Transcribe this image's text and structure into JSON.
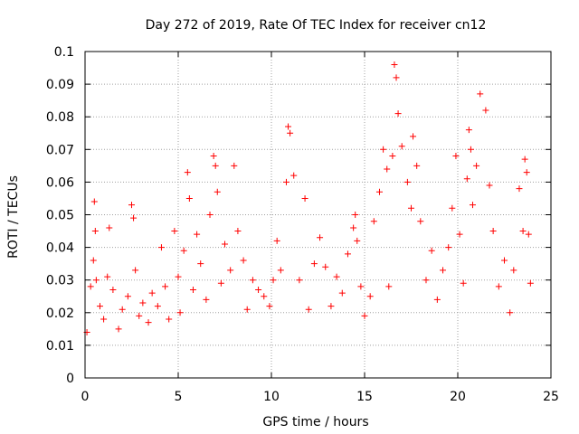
{
  "chart_data": {
    "type": "scatter",
    "title": "Day 272 of 2019, Rate Of TEC Index for receiver cn12",
    "xlabel": "GPS time / hours",
    "ylabel": "ROTI / TECUs",
    "xlim": [
      0,
      25
    ],
    "ylim": [
      0,
      0.1
    ],
    "xticks": [
      0,
      5,
      10,
      15,
      20,
      25
    ],
    "xtick_labels": [
      "0",
      "5",
      "10",
      "15",
      "20",
      "25"
    ],
    "yticks": [
      0,
      0.01,
      0.02,
      0.03,
      0.04,
      0.05,
      0.06,
      0.07,
      0.08,
      0.09,
      0.1
    ],
    "ytick_labels": [
      "0",
      "0.01",
      "0.02",
      "0.03",
      "0.04",
      "0.05",
      "0.06",
      "0.07",
      "0.08",
      "0.09",
      "0.1"
    ],
    "grid": true,
    "marker": "+",
    "marker_color": "#ff0000",
    "series": [
      {
        "name": "ROTI",
        "x": [
          0.1,
          0.3,
          0.45,
          0.5,
          0.55,
          0.6,
          0.8,
          1.0,
          1.2,
          1.3,
          1.5,
          1.8,
          2.0,
          2.3,
          2.5,
          2.6,
          2.7,
          2.9,
          3.1,
          3.4,
          3.6,
          3.9,
          4.1,
          4.3,
          4.5,
          4.8,
          5.0,
          5.1,
          5.3,
          5.5,
          5.6,
          5.8,
          6.0,
          6.2,
          6.5,
          6.7,
          6.9,
          7.0,
          7.1,
          7.3,
          7.5,
          7.8,
          8.0,
          8.2,
          8.5,
          8.7,
          9.0,
          9.3,
          9.6,
          9.9,
          10.1,
          10.3,
          10.5,
          10.8,
          10.9,
          11.0,
          11.2,
          11.5,
          11.8,
          12.0,
          12.3,
          12.6,
          12.9,
          13.2,
          13.5,
          13.8,
          14.1,
          14.4,
          14.5,
          14.6,
          14.8,
          15.0,
          15.3,
          15.5,
          15.8,
          16.0,
          16.2,
          16.3,
          16.5,
          16.6,
          16.7,
          16.8,
          17.0,
          17.3,
          17.5,
          17.6,
          17.8,
          18.0,
          18.3,
          18.6,
          18.9,
          19.2,
          19.5,
          19.7,
          19.9,
          20.1,
          20.3,
          20.5,
          20.6,
          20.7,
          20.8,
          21.0,
          21.2,
          21.5,
          21.7,
          21.9,
          22.2,
          22.5,
          22.8,
          23.0,
          23.3,
          23.5,
          23.6,
          23.7,
          23.8,
          23.9
        ],
        "y": [
          0.014,
          0.028,
          0.036,
          0.054,
          0.045,
          0.03,
          0.022,
          0.018,
          0.031,
          0.046,
          0.027,
          0.015,
          0.021,
          0.025,
          0.053,
          0.049,
          0.033,
          0.019,
          0.023,
          0.017,
          0.026,
          0.022,
          0.04,
          0.028,
          0.018,
          0.045,
          0.031,
          0.02,
          0.039,
          0.063,
          0.055,
          0.027,
          0.044,
          0.035,
          0.024,
          0.05,
          0.068,
          0.065,
          0.057,
          0.029,
          0.041,
          0.033,
          0.065,
          0.045,
          0.036,
          0.021,
          0.03,
          0.027,
          0.025,
          0.022,
          0.03,
          0.042,
          0.033,
          0.06,
          0.077,
          0.075,
          0.062,
          0.03,
          0.055,
          0.021,
          0.035,
          0.043,
          0.034,
          0.022,
          0.031,
          0.026,
          0.038,
          0.046,
          0.05,
          0.042,
          0.028,
          0.019,
          0.025,
          0.048,
          0.057,
          0.07,
          0.064,
          0.028,
          0.068,
          0.096,
          0.092,
          0.081,
          0.071,
          0.06,
          0.052,
          0.074,
          0.065,
          0.048,
          0.03,
          0.039,
          0.024,
          0.033,
          0.04,
          0.052,
          0.068,
          0.044,
          0.029,
          0.061,
          0.076,
          0.07,
          0.053,
          0.065,
          0.087,
          0.082,
          0.059,
          0.045,
          0.028,
          0.036,
          0.02,
          0.033,
          0.058,
          0.045,
          0.067,
          0.063,
          0.044,
          0.029
        ]
      }
    ]
  }
}
